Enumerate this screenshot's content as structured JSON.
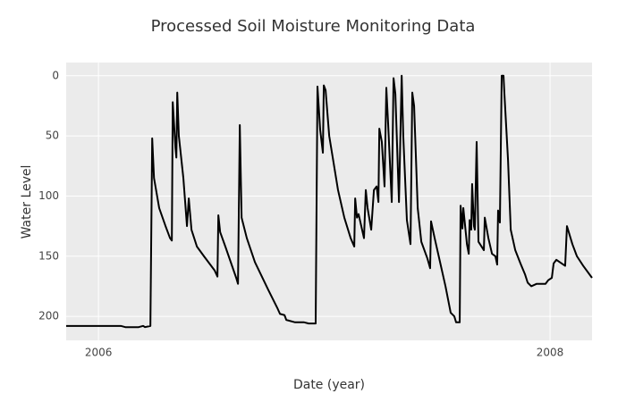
{
  "chart_data": {
    "type": "line",
    "title": "Processed Soil Moisture Monitoring Data",
    "x_label": "Date (year)",
    "y_label": "Water Level",
    "xlim": [
      2005.857,
      2008.186
    ],
    "xticks": [
      2006,
      2008
    ],
    "ylim": [
      -11,
      220
    ],
    "y_reversed": true,
    "yticks": [
      0,
      50,
      100,
      150,
      200
    ],
    "grid": true,
    "series": [
      {
        "color": "#000000",
        "x": [
          2005.857,
          2006.099,
          2006.119,
          2006.178,
          2006.198,
          2006.206,
          2006.23,
          2006.238,
          2006.246,
          2006.269,
          2006.297,
          2006.317,
          2006.325,
          2006.329,
          2006.341,
          2006.345,
          2006.349,
          2006.356,
          2006.376,
          2006.392,
          2006.4,
          2006.412,
          2006.436,
          2006.467,
          2006.515,
          2006.527,
          2006.531,
          2006.539,
          2006.562,
          2006.586,
          2006.61,
          2006.618,
          2006.626,
          2006.634,
          2006.657,
          2006.693,
          2006.752,
          2006.792,
          2006.804,
          2006.824,
          2006.832,
          2006.871,
          2006.911,
          2006.931,
          2006.962,
          2006.97,
          2006.982,
          2006.994,
          2006.998,
          2007.006,
          2007.022,
          2007.061,
          2007.089,
          2007.117,
          2007.133,
          2007.137,
          2007.145,
          2007.152,
          2007.176,
          2007.184,
          2007.192,
          2007.208,
          2007.22,
          2007.232,
          2007.24,
          2007.244,
          2007.255,
          2007.267,
          2007.275,
          2007.283,
          2007.299,
          2007.307,
          2007.315,
          2007.331,
          2007.343,
          2007.35,
          2007.366,
          2007.382,
          2007.39,
          2007.398,
          2007.414,
          2007.43,
          2007.457,
          2007.469,
          2007.473,
          2007.489,
          2007.513,
          2007.537,
          2007.56,
          2007.576,
          2007.584,
          2007.6,
          2007.604,
          2007.612,
          2007.616,
          2007.632,
          2007.64,
          2007.644,
          2007.651,
          2007.655,
          2007.663,
          2007.667,
          2007.675,
          2007.683,
          2007.707,
          2007.711,
          2007.727,
          2007.743,
          2007.758,
          2007.766,
          2007.77,
          2007.778,
          2007.786,
          2007.794,
          2007.798,
          2007.814,
          2007.826,
          2007.846,
          2007.869,
          2007.889,
          2007.901,
          2007.917,
          2007.941,
          2007.98,
          2007.992,
          2008.008,
          2008.016,
          2008.028,
          2008.059,
          2008.067,
          2008.075,
          2008.099,
          2008.119,
          2008.147,
          2008.186
        ],
        "values": [
          208,
          208,
          209,
          209,
          208,
          209,
          208,
          52,
          85,
          110,
          125,
          135,
          137,
          22,
          60,
          68,
          14,
          50,
          85,
          125,
          102,
          128,
          142,
          150,
          162,
          167,
          116,
          130,
          142,
          155,
          168,
          173,
          41,
          118,
          135,
          155,
          178,
          193,
          198,
          199,
          203,
          205,
          205,
          206,
          206,
          9,
          45,
          64,
          8,
          12,
          50,
          95,
          118,
          135,
          142,
          102,
          118,
          115,
          135,
          95,
          110,
          128,
          95,
          92,
          105,
          44,
          55,
          92,
          10,
          40,
          105,
          2,
          15,
          105,
          0,
          50,
          120,
          140,
          14,
          25,
          110,
          138,
          152,
          160,
          121,
          135,
          155,
          175,
          197,
          200,
          205,
          205,
          108,
          127,
          110,
          140,
          148,
          120,
          128,
          90,
          125,
          128,
          55,
          138,
          145,
          118,
          135,
          148,
          150,
          157,
          112,
          122,
          0,
          0,
          15,
          70,
          128,
          145,
          156,
          165,
          172,
          175,
          173,
          173,
          170,
          168,
          156,
          153,
          157,
          158,
          125,
          140,
          150,
          158,
          168
        ]
      }
    ]
  }
}
